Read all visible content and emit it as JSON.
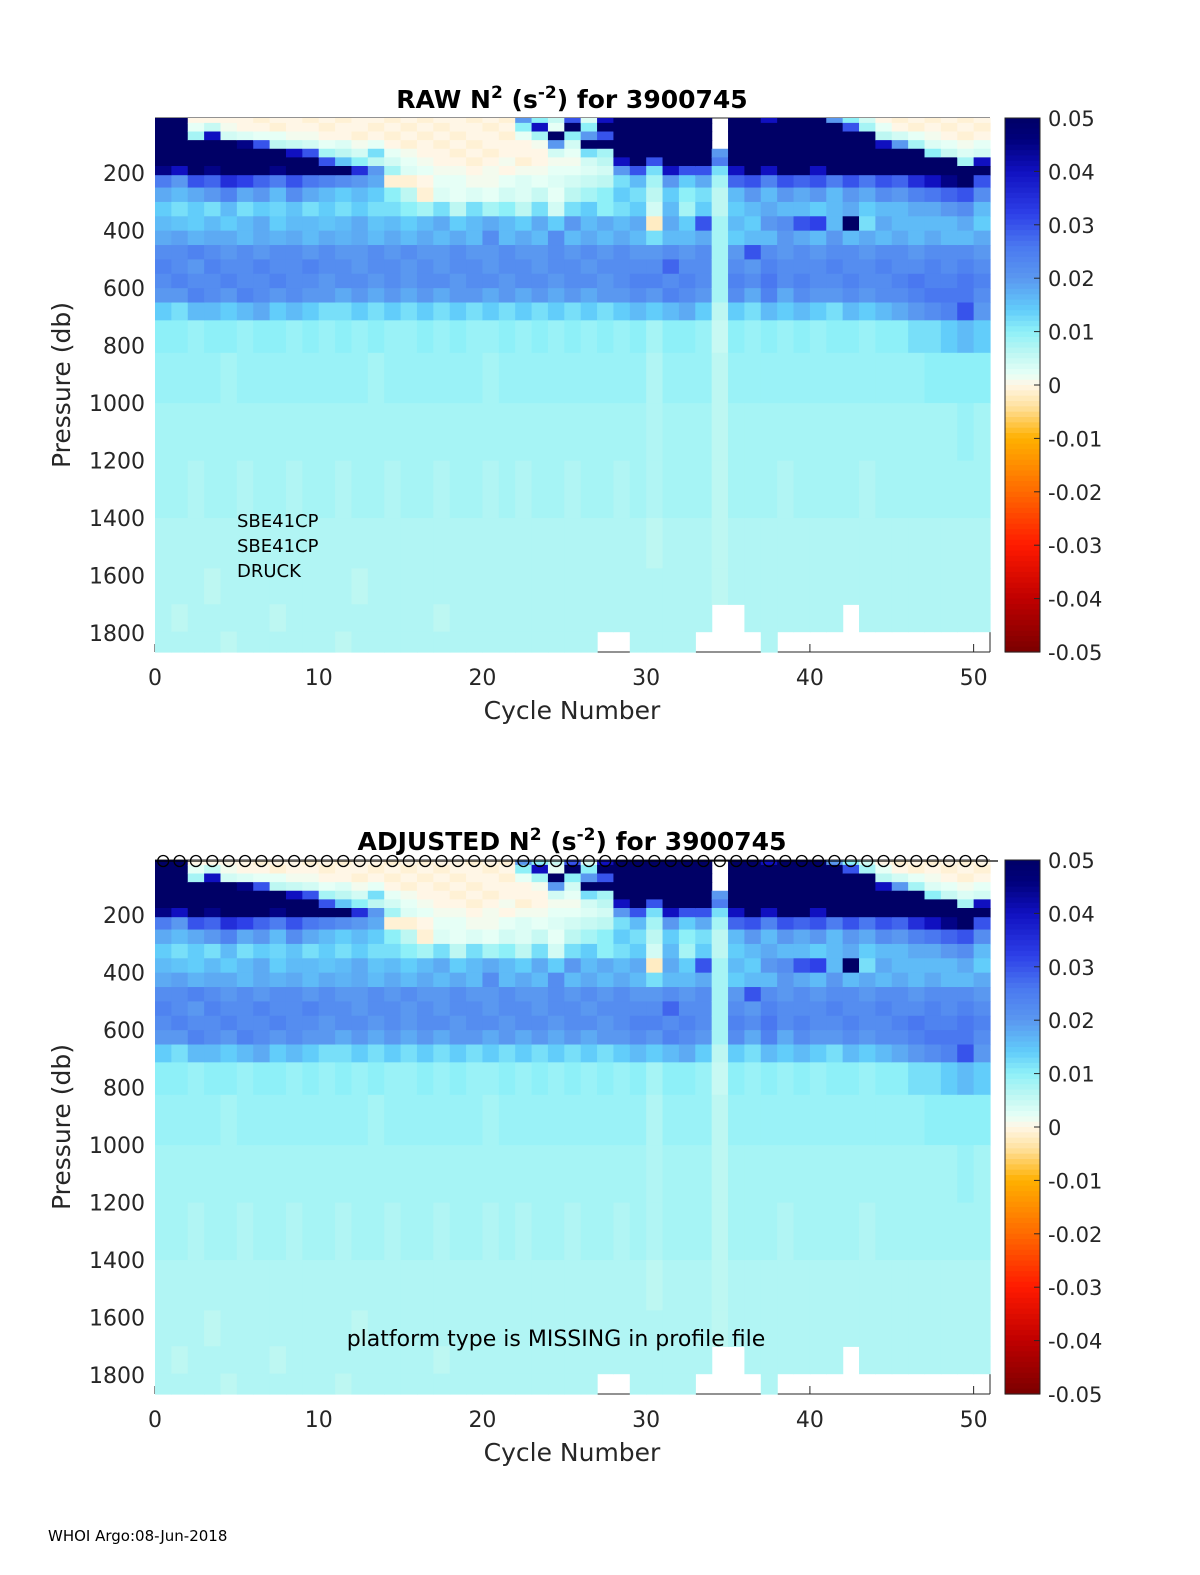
{
  "footer": "WHOI Argo:08-Jun-2018",
  "chart_data": [
    {
      "type": "heatmap",
      "title_parts": [
        "RAW N",
        "2",
        " (s",
        "-2",
        ") for 3900745"
      ],
      "xlabel": "Cycle Number",
      "ylabel": "Pressure (db)",
      "xlim": [
        0,
        51
      ],
      "ylim": [
        1866,
        8
      ],
      "xticks": [
        "0",
        "10",
        "20",
        "30",
        "40",
        "50"
      ],
      "yticks": [
        "200",
        "400",
        "600",
        "800",
        "1000",
        "1200",
        "1400",
        "1600",
        "1800"
      ],
      "annotations": [
        "SBE41CP",
        "SBE41CP",
        "DRUCK"
      ],
      "colorbar_ticks": [
        "0.05",
        "0.04",
        "0.03",
        "0.02",
        "0.01",
        "0",
        "-0.01",
        "-0.02",
        "-0.03",
        "-0.04",
        "-0.05"
      ],
      "clim": [
        -0.05,
        0.05
      ]
    },
    {
      "type": "heatmap",
      "title_parts": [
        "ADJUSTED N",
        "2",
        " (s",
        "-2",
        ") for 3900745"
      ],
      "xlabel": "Cycle Number",
      "ylabel": "Pressure (db)",
      "xlim": [
        0,
        51
      ],
      "ylim": [
        1866,
        8
      ],
      "xticks": [
        "0",
        "10",
        "20",
        "30",
        "40",
        "50"
      ],
      "yticks": [
        "200",
        "400",
        "600",
        "800",
        "1000",
        "1200",
        "1400",
        "1600",
        "1800"
      ],
      "annotations": [
        "platform type is MISSING in profile file"
      ],
      "colorbar_ticks": [
        "0.05",
        "0.04",
        "0.03",
        "0.02",
        "0.01",
        "0",
        "-0.01",
        "-0.02",
        "-0.03",
        "-0.04",
        "-0.05"
      ],
      "clim": [
        -0.05,
        0.05
      ],
      "top_markers": "o"
    }
  ],
  "grid": {
    "value_scale": 0.001,
    "pressure_bins": [
      10,
      40,
      70,
      100,
      130,
      160,
      190,
      225,
      275,
      325,
      375,
      425,
      475,
      525,
      575,
      625,
      675,
      750,
      900,
      1100,
      1300,
      1500,
      1650,
      1750,
      1840
    ],
    "pressure_edges": [
      8,
      25,
      55,
      85,
      115,
      145,
      175,
      207,
      250,
      300,
      350,
      400,
      450,
      500,
      550,
      600,
      650,
      712,
      825,
      1000,
      1200,
      1400,
      1575,
      1700,
      1795,
      1866
    ],
    "cycles": 51,
    "values_by_cycle": [
      [
        60,
        60,
        60,
        60,
        60,
        60,
        45,
        25,
        18,
        14,
        16,
        18,
        22,
        24,
        22,
        20,
        14,
        10,
        9,
        8,
        8,
        7,
        7,
        7,
        7
      ],
      [
        60,
        60,
        60,
        60,
        60,
        50,
        40,
        20,
        16,
        12,
        15,
        19,
        22,
        22,
        24,
        20,
        12,
        10,
        9,
        8,
        8,
        7,
        7,
        6,
        7
      ],
      [
        0,
        2,
        8,
        60,
        60,
        60,
        60,
        30,
        18,
        14,
        14,
        17,
        24,
        20,
        22,
        24,
        16,
        9,
        9,
        8,
        7,
        7,
        7,
        7,
        7
      ],
      [
        0,
        5,
        40,
        60,
        60,
        60,
        45,
        28,
        20,
        12,
        16,
        18,
        22,
        24,
        22,
        22,
        16,
        10,
        9,
        8,
        8,
        7,
        6,
        7,
        7
      ],
      [
        0,
        1,
        4,
        60,
        60,
        60,
        60,
        35,
        24,
        16,
        14,
        18,
        20,
        22,
        24,
        20,
        14,
        10,
        8,
        8,
        8,
        7,
        7,
        7,
        6
      ],
      [
        0,
        0,
        3,
        45,
        60,
        60,
        50,
        32,
        18,
        12,
        16,
        16,
        22,
        22,
        22,
        24,
        16,
        9,
        9,
        8,
        7,
        7,
        7,
        7,
        7
      ],
      [
        -1,
        0,
        2,
        30,
        60,
        60,
        60,
        28,
        20,
        14,
        18,
        18,
        20,
        24,
        22,
        22,
        18,
        10,
        9,
        8,
        8,
        7,
        7,
        7,
        7
      ],
      [
        0,
        -1,
        2,
        6,
        60,
        60,
        45,
        25,
        16,
        13,
        14,
        17,
        22,
        22,
        24,
        20,
        14,
        10,
        9,
        8,
        8,
        7,
        7,
        6,
        7
      ],
      [
        0,
        0,
        1,
        5,
        40,
        60,
        60,
        30,
        22,
        15,
        16,
        18,
        22,
        22,
        22,
        22,
        16,
        9,
        9,
        8,
        7,
        7,
        7,
        7,
        7
      ],
      [
        -1,
        0,
        1,
        4,
        30,
        60,
        55,
        26,
        18,
        12,
        16,
        16,
        20,
        24,
        22,
        20,
        14,
        10,
        9,
        8,
        8,
        7,
        7,
        7,
        7
      ],
      [
        0,
        -1,
        0,
        2,
        8,
        30,
        60,
        24,
        16,
        14,
        15,
        18,
        22,
        22,
        20,
        20,
        12,
        9,
        9,
        8,
        8,
        7,
        7,
        7,
        7
      ],
      [
        -1,
        0,
        0,
        3,
        6,
        15,
        60,
        22,
        14,
        12,
        16,
        17,
        20,
        22,
        22,
        18,
        12,
        10,
        9,
        8,
        7,
        7,
        7,
        7,
        6
      ],
      [
        0,
        0,
        -1,
        1,
        4,
        10,
        35,
        20,
        16,
        14,
        18,
        18,
        20,
        20,
        22,
        20,
        14,
        9,
        9,
        8,
        8,
        7,
        6,
        7,
        7
      ],
      [
        0,
        -1,
        0,
        2,
        12,
        6,
        20,
        18,
        14,
        12,
        15,
        16,
        22,
        22,
        20,
        18,
        12,
        10,
        8,
        8,
        8,
        7,
        7,
        7,
        7
      ],
      [
        -1,
        0,
        -1,
        0,
        2,
        4,
        8,
        -1,
        10,
        12,
        16,
        18,
        20,
        22,
        22,
        20,
        14,
        9,
        9,
        8,
        7,
        7,
        7,
        7,
        7
      ],
      [
        0,
        -1,
        0,
        -1,
        1,
        2,
        3,
        -1,
        6,
        10,
        14,
        16,
        22,
        20,
        20,
        18,
        12,
        9,
        9,
        8,
        8,
        7,
        7,
        7,
        7
      ],
      [
        -1,
        0,
        -1,
        0,
        0,
        1,
        2,
        0,
        -1,
        8,
        16,
        18,
        20,
        22,
        22,
        20,
        14,
        10,
        9,
        8,
        8,
        7,
        7,
        7,
        7
      ],
      [
        0,
        -1,
        0,
        -1,
        0,
        0,
        1,
        2,
        3,
        12,
        18,
        16,
        20,
        20,
        22,
        18,
        12,
        9,
        9,
        8,
        7,
        7,
        7,
        6,
        7
      ],
      [
        0,
        0,
        -1,
        0,
        -1,
        0,
        1,
        2,
        2,
        6,
        14,
        18,
        22,
        22,
        20,
        20,
        14,
        10,
        9,
        8,
        8,
        7,
        7,
        7,
        7
      ],
      [
        -1,
        0,
        0,
        -1,
        0,
        -1,
        0,
        1,
        3,
        12,
        16,
        16,
        20,
        22,
        22,
        20,
        12,
        9,
        9,
        8,
        8,
        7,
        7,
        7,
        7
      ],
      [
        0,
        -1,
        0,
        0,
        -1,
        0,
        1,
        1,
        2,
        8,
        18,
        22,
        20,
        20,
        22,
        18,
        14,
        9,
        8,
        8,
        7,
        7,
        7,
        7,
        7
      ],
      [
        -1,
        0,
        -1,
        0,
        0,
        1,
        0,
        2,
        4,
        10,
        16,
        16,
        22,
        22,
        20,
        20,
        12,
        10,
        9,
        8,
        8,
        7,
        7,
        7,
        7
      ],
      [
        20,
        10,
        2,
        0,
        0,
        -1,
        1,
        3,
        3,
        6,
        14,
        18,
        20,
        22,
        22,
        18,
        14,
        9,
        9,
        8,
        7,
        7,
        7,
        7,
        7
      ],
      [
        10,
        40,
        8,
        1,
        0,
        0,
        1,
        2,
        5,
        12,
        18,
        16,
        20,
        20,
        22,
        20,
        12,
        10,
        9,
        8,
        8,
        7,
        7,
        7,
        7
      ],
      [
        5,
        2,
        60,
        20,
        4,
        1,
        2,
        3,
        2,
        4,
        14,
        22,
        22,
        22,
        20,
        18,
        14,
        9,
        9,
        8,
        8,
        7,
        7,
        7,
        7
      ],
      [
        30,
        60,
        10,
        4,
        2,
        1,
        2,
        4,
        6,
        12,
        20,
        16,
        20,
        22,
        22,
        20,
        12,
        10,
        9,
        8,
        7,
        7,
        7,
        7,
        7
      ],
      [
        3,
        10,
        20,
        60,
        12,
        4,
        3,
        5,
        8,
        14,
        16,
        18,
        22,
        20,
        22,
        18,
        14,
        9,
        9,
        8,
        8,
        7,
        7,
        7,
        7
      ],
      [
        40,
        60,
        30,
        60,
        8,
        6,
        4,
        6,
        10,
        10,
        18,
        16,
        20,
        22,
        20,
        20,
        12,
        10,
        9,
        8,
        8,
        7,
        7,
        7,
        null
      ],
      [
        60,
        60,
        60,
        60,
        60,
        40,
        20,
        12,
        14,
        12,
        16,
        18,
        22,
        22,
        22,
        20,
        14,
        9,
        9,
        8,
        7,
        7,
        7,
        7,
        null
      ],
      [
        60,
        60,
        60,
        60,
        60,
        60,
        30,
        16,
        12,
        14,
        18,
        16,
        20,
        22,
        24,
        22,
        16,
        10,
        9,
        8,
        8,
        7,
        7,
        7,
        7
      ],
      [
        60,
        60,
        60,
        60,
        50,
        30,
        12,
        8,
        6,
        4,
        -2,
        12,
        20,
        22,
        24,
        20,
        14,
        8,
        7,
        7,
        7,
        6,
        7,
        7,
        7
      ],
      [
        60,
        60,
        60,
        60,
        60,
        60,
        40,
        20,
        14,
        16,
        18,
        16,
        22,
        28,
        22,
        24,
        16,
        10,
        9,
        8,
        8,
        7,
        7,
        7,
        7
      ],
      [
        60,
        60,
        60,
        60,
        60,
        50,
        30,
        14,
        10,
        8,
        14,
        16,
        20,
        22,
        24,
        22,
        18,
        10,
        9,
        8,
        8,
        7,
        7,
        7,
        7
      ],
      [
        60,
        60,
        60,
        60,
        60,
        60,
        30,
        18,
        12,
        14,
        30,
        18,
        22,
        22,
        22,
        20,
        14,
        9,
        9,
        8,
        8,
        7,
        7,
        7,
        null
      ],
      [
        null,
        null,
        null,
        null,
        20,
        25,
        12,
        8,
        6,
        6,
        8,
        8,
        8,
        8,
        8,
        8,
        6,
        5,
        6,
        6,
        6,
        6,
        6,
        null,
        null
      ],
      [
        60,
        60,
        60,
        60,
        60,
        60,
        40,
        28,
        16,
        14,
        16,
        14,
        20,
        22,
        24,
        22,
        14,
        10,
        9,
        8,
        8,
        7,
        7,
        null,
        null
      ],
      [
        60,
        60,
        50,
        60,
        60,
        60,
        60,
        30,
        20,
        16,
        14,
        16,
        30,
        20,
        22,
        18,
        12,
        9,
        9,
        8,
        8,
        7,
        7,
        7,
        null
      ],
      [
        40,
        60,
        60,
        60,
        60,
        60,
        40,
        24,
        16,
        18,
        20,
        16,
        22,
        24,
        26,
        24,
        16,
        10,
        9,
        8,
        8,
        7,
        7,
        7,
        7
      ],
      [
        60,
        60,
        60,
        60,
        60,
        60,
        50,
        30,
        20,
        16,
        22,
        20,
        20,
        22,
        22,
        18,
        14,
        9,
        9,
        8,
        7,
        7,
        7,
        7,
        null
      ],
      [
        50,
        60,
        60,
        60,
        60,
        60,
        60,
        28,
        18,
        16,
        30,
        18,
        22,
        22,
        24,
        22,
        16,
        10,
        9,
        8,
        8,
        7,
        7,
        7,
        null
      ],
      [
        60,
        60,
        60,
        60,
        60,
        50,
        40,
        30,
        20,
        14,
        32,
        16,
        20,
        22,
        22,
        20,
        14,
        9,
        9,
        8,
        8,
        7,
        7,
        7,
        null
      ],
      [
        20,
        60,
        60,
        60,
        60,
        60,
        60,
        25,
        16,
        16,
        16,
        20,
        22,
        24,
        22,
        20,
        12,
        10,
        9,
        8,
        8,
        7,
        7,
        7,
        null
      ],
      [
        10,
        30,
        60,
        60,
        60,
        60,
        60,
        30,
        20,
        18,
        55,
        16,
        22,
        22,
        24,
        22,
        16,
        10,
        9,
        8,
        8,
        7,
        7,
        null,
        null
      ],
      [
        4,
        8,
        60,
        60,
        60,
        60,
        50,
        26,
        18,
        14,
        12,
        18,
        20,
        22,
        22,
        20,
        14,
        9,
        9,
        8,
        7,
        7,
        7,
        7,
        null
      ],
      [
        0,
        2,
        6,
        40,
        60,
        60,
        60,
        30,
        22,
        16,
        18,
        16,
        22,
        24,
        22,
        22,
        16,
        10,
        9,
        8,
        8,
        7,
        7,
        7,
        null
      ],
      [
        -1,
        0,
        4,
        20,
        60,
        60,
        60,
        28,
        20,
        16,
        16,
        18,
        22,
        22,
        24,
        22,
        18,
        10,
        9,
        8,
        8,
        7,
        7,
        7,
        null
      ],
      [
        0,
        -1,
        2,
        8,
        60,
        60,
        60,
        35,
        24,
        18,
        16,
        16,
        20,
        22,
        26,
        24,
        20,
        12,
        9,
        8,
        8,
        7,
        7,
        7,
        null
      ],
      [
        -1,
        0,
        1,
        3,
        10,
        60,
        60,
        40,
        26,
        18,
        16,
        18,
        22,
        24,
        24,
        26,
        22,
        12,
        10,
        8,
        8,
        7,
        7,
        7,
        null
      ],
      [
        0,
        -1,
        0,
        2,
        5,
        60,
        60,
        45,
        28,
        20,
        16,
        16,
        22,
        22,
        24,
        26,
        24,
        14,
        10,
        8,
        8,
        7,
        7,
        7,
        null
      ],
      [
        -1,
        0,
        -1,
        1,
        3,
        8,
        60,
        60,
        30,
        22,
        18,
        16,
        22,
        24,
        26,
        26,
        30,
        16,
        10,
        9,
        8,
        7,
        7,
        7,
        null
      ],
      [
        0,
        -1,
        0,
        2,
        4,
        40,
        60,
        30,
        22,
        16,
        14,
        18,
        20,
        22,
        24,
        22,
        20,
        14,
        10,
        8,
        8,
        7,
        7,
        7,
        null
      ]
    ]
  },
  "colormap": [
    [
      -0.05,
      "#7a0000"
    ],
    [
      -0.04,
      "#c00000"
    ],
    [
      -0.03,
      "#ff1a00"
    ],
    [
      -0.02,
      "#ff6a00"
    ],
    [
      -0.01,
      "#ffb000"
    ],
    [
      -0.004,
      "#ffe2a0"
    ],
    [
      0,
      "#fff6e6"
    ],
    [
      0.002,
      "#e6fff6"
    ],
    [
      0.006,
      "#bdf7f2"
    ],
    [
      0.01,
      "#8ef0f8"
    ],
    [
      0.014,
      "#62cdfa"
    ],
    [
      0.02,
      "#5a98f0"
    ],
    [
      0.026,
      "#4a78f0"
    ],
    [
      0.032,
      "#2e40e8"
    ],
    [
      0.04,
      "#1010c0"
    ],
    [
      0.046,
      "#00007a"
    ],
    [
      0.05,
      "#000066"
    ]
  ]
}
